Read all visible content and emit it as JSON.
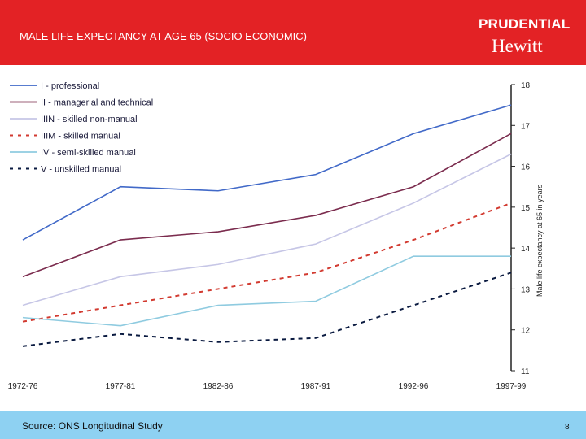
{
  "header": {
    "title": "MALE LIFE EXPECTANCY AT AGE 65 (SOCIO ECONOMIC)",
    "logo_top": "PRUDENTIAL",
    "logo_bottom": "Hewitt",
    "color": "#e32225"
  },
  "footer": {
    "source": "Source: ONS Longitudinal Study",
    "page": "8"
  },
  "chart_data": {
    "type": "line",
    "categories": [
      "1972-76",
      "1977-81",
      "1982-86",
      "1987-91",
      "1992-96",
      "1997-99"
    ],
    "ylabel": "Male life expectancy at 65 in years",
    "ylim": [
      11,
      18
    ],
    "yticks": [
      "11",
      "12",
      "13",
      "14",
      "15",
      "16",
      "17",
      "18"
    ],
    "y_axis_position": "right",
    "legend_position": "top-left",
    "grid": false,
    "series": [
      {
        "name": "I - professional",
        "color": "#4169c8",
        "dash": false,
        "values": [
          14.2,
          15.5,
          15.4,
          15.8,
          16.8,
          17.5
        ]
      },
      {
        "name": "II - managerial and technical",
        "color": "#7b2c4e",
        "dash": false,
        "values": [
          13.3,
          14.2,
          14.4,
          14.8,
          15.5,
          16.8
        ]
      },
      {
        "name": "IIIN - skilled non-manual",
        "color": "#c6c6e6",
        "dash": false,
        "values": [
          12.6,
          13.3,
          13.6,
          14.1,
          15.1,
          16.3
        ]
      },
      {
        "name": "IIIM - skilled manual",
        "color": "#d23a30",
        "dash": true,
        "values": [
          12.2,
          12.6,
          13.0,
          13.4,
          14.2,
          15.1
        ]
      },
      {
        "name": "IV - semi-skilled manual",
        "color": "#8fcbe0",
        "dash": false,
        "values": [
          12.3,
          12.1,
          12.6,
          12.7,
          13.8,
          13.8
        ]
      },
      {
        "name": "V - unskilled manual",
        "color": "#0a1a40",
        "dash": true,
        "values": [
          11.6,
          11.9,
          11.7,
          11.8,
          12.6,
          13.4
        ]
      }
    ]
  }
}
